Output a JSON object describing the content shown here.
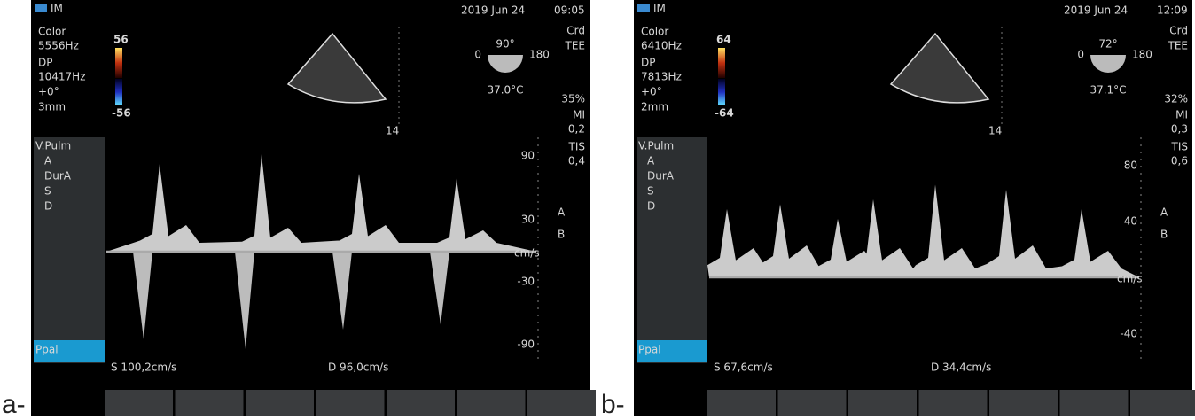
{
  "panels": [
    {
      "label": "a-",
      "header": {
        "mode": "IM",
        "date": "2019 Jun 24",
        "time": "09:05"
      },
      "settings": [
        "Color",
        "5556Hz",
        "DP",
        "10417Hz",
        "+0°",
        "3mm"
      ],
      "color_scale": {
        "max": "56",
        "min": "-56"
      },
      "probe": {
        "angle": "90°",
        "min": "0",
        "max": "180",
        "temperature": "37.0°C"
      },
      "right_info": [
        "Crd",
        "TEE",
        "35%",
        "MI",
        "0,2",
        "TIS",
        "0,4"
      ],
      "depth": "14",
      "menu": [
        "V.Pulm",
        "A",
        "DurA",
        "S",
        "D"
      ],
      "menu_selected": "Ppal",
      "velocity_ticks": [
        "90",
        "30",
        "-30",
        "-90"
      ],
      "unit": "cm/s",
      "markers": [
        "A",
        "B"
      ],
      "measurements": [
        "S 100,2cm/s",
        "D 96,0cm/s"
      ]
    },
    {
      "label": "b-",
      "header": {
        "mode": "IM",
        "date": "2019 Jun 24",
        "time": "12:09"
      },
      "settings": [
        "Color",
        "6410Hz",
        "DP",
        "7813Hz",
        "+0°",
        "2mm"
      ],
      "color_scale": {
        "max": "64",
        "min": "-64"
      },
      "probe": {
        "angle": "72°",
        "min": "0",
        "max": "180",
        "temperature": "37.1°C"
      },
      "right_info": [
        "Crd",
        "TEE",
        "32%",
        "MI",
        "0,3",
        "TIS",
        "0,6"
      ],
      "depth": "14",
      "menu": [
        "V.Pulm",
        "A",
        "DurA",
        "S",
        "D"
      ],
      "menu_selected": "Ppal",
      "velocity_ticks": [
        "80",
        "40",
        "-40"
      ],
      "unit": "cm/s",
      "markers": [
        "A",
        "B"
      ],
      "measurements": [
        "S 67,6cm/s",
        "D 34,4cm/s"
      ]
    }
  ]
}
